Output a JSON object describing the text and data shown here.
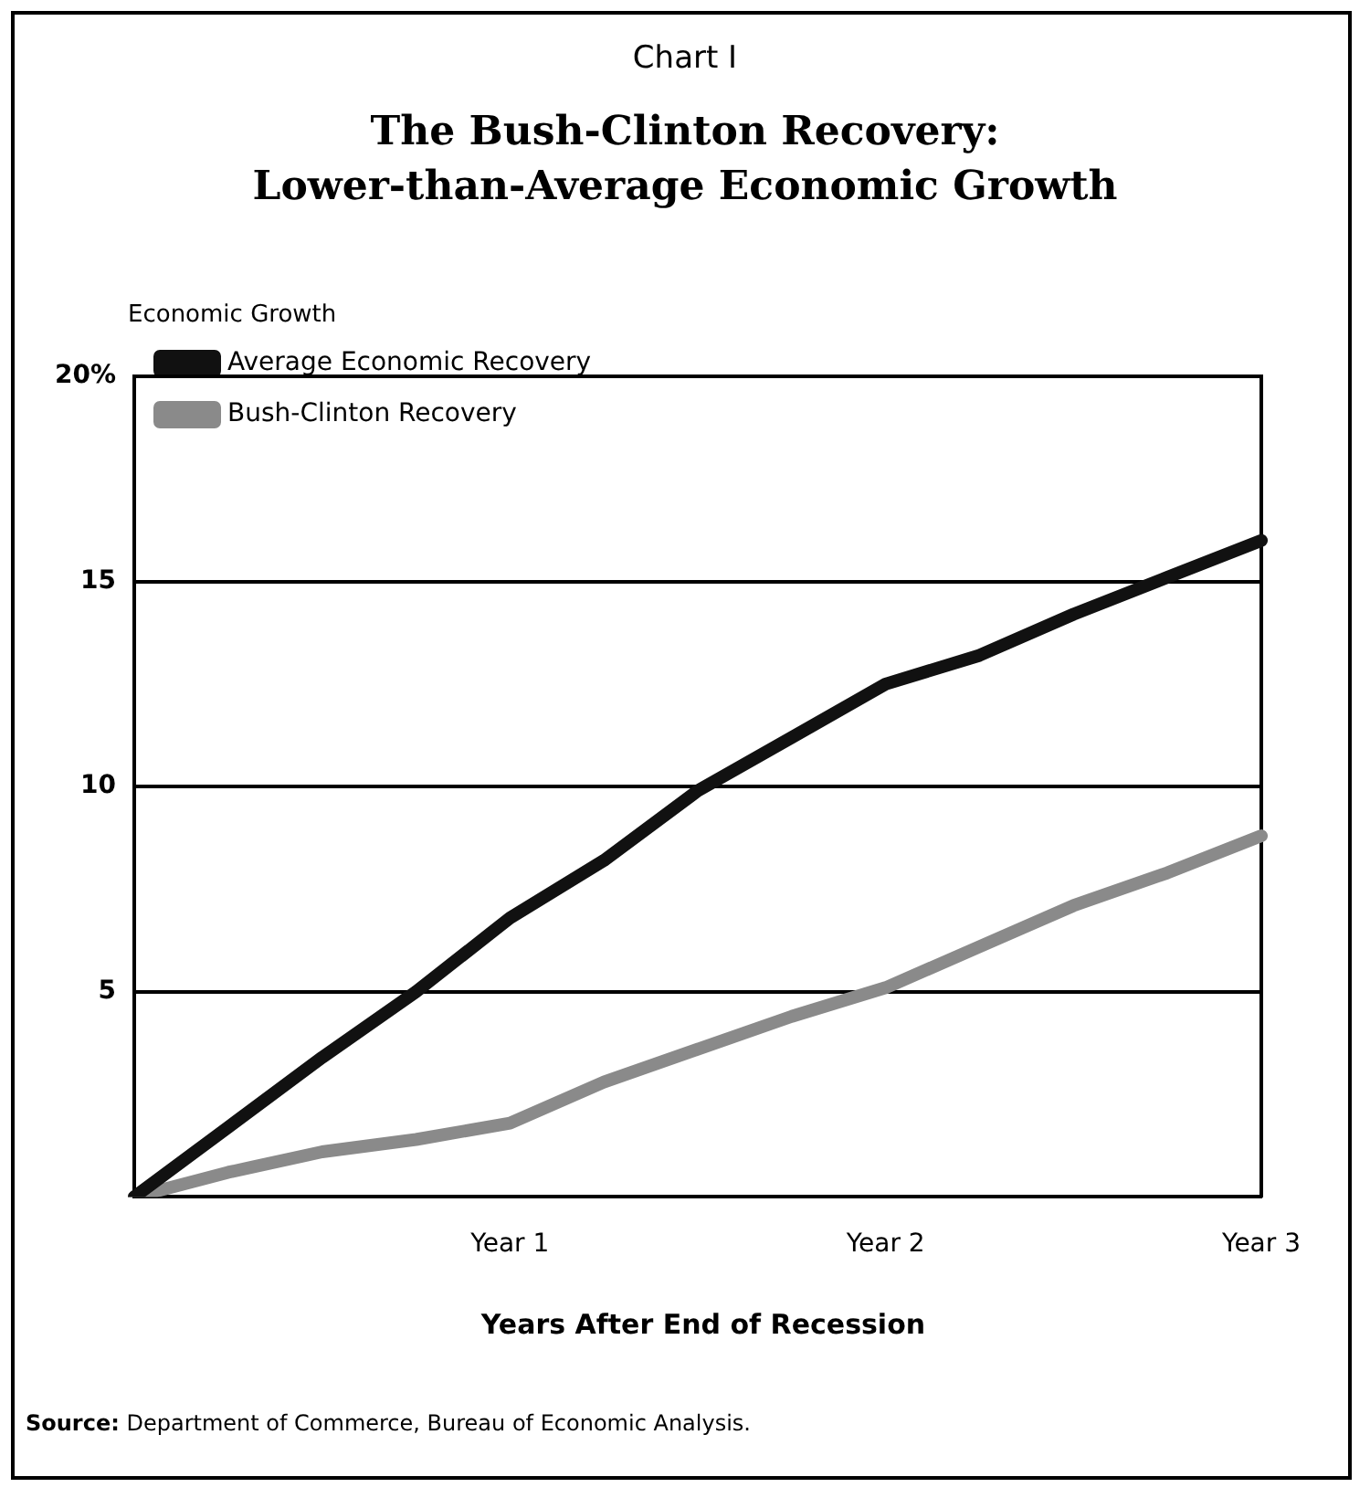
{
  "chart_data": {
    "type": "line",
    "title": "The Bush-Clinton Recovery:\nLower-than-Average Economic Growth",
    "xlabel": "Years After End of Recession",
    "ylabel": "Economic Growth",
    "annotations": [
      "Chart I",
      "Source: Department of Commerce, Bureau of Economic Analysis."
    ],
    "categories": [
      null,
      null,
      null,
      null,
      "Year 1",
      null,
      null,
      null,
      "Year 2",
      null,
      null,
      null,
      "Year 3"
    ],
    "series": [
      {
        "name": "Average Economic Recovery",
        "color": "#111111",
        "values": [
          0,
          1.7,
          3.4,
          5.0,
          6.8,
          8.2,
          9.9,
          11.2,
          12.5,
          13.2,
          14.2,
          15.1,
          16.0
        ]
      },
      {
        "name": "Bush-Clinton Recovery",
        "color": "#8a8a8a",
        "values": [
          0,
          0.6,
          1.1,
          1.4,
          1.8,
          2.8,
          3.6,
          4.4,
          5.1,
          6.1,
          7.1,
          7.9,
          8.8
        ]
      }
    ],
    "ylim": [
      0,
      20
    ],
    "yticks": [
      5,
      10,
      15,
      {
        "value": 20,
        "label": "20%"
      }
    ],
    "grid": "y",
    "legend": "top left",
    "marker": "none",
    "line_style": "solid"
  }
}
